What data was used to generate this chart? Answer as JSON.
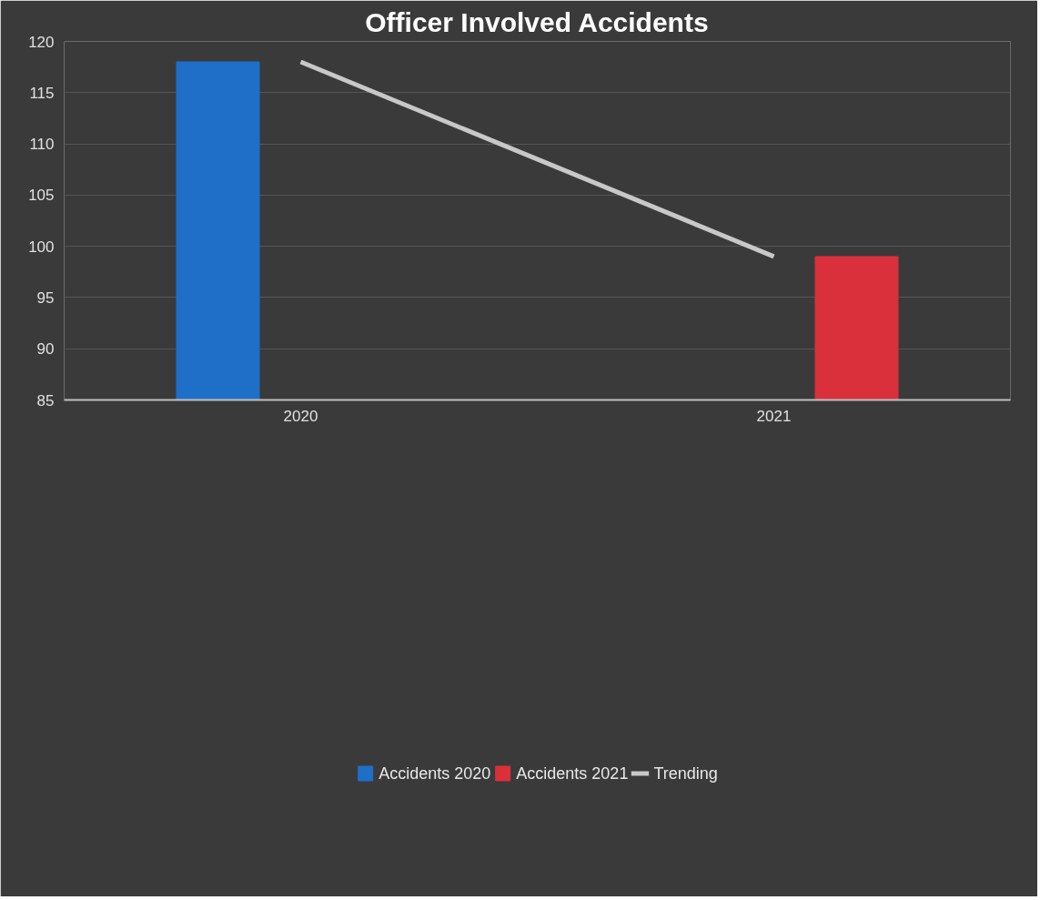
{
  "chart_data": {
    "type": "bar",
    "title": "Officer Involved Accidents",
    "categories": [
      "2020",
      "2021"
    ],
    "series": [
      {
        "name": "Accidents 2020",
        "color": "#1f6fc8",
        "values": [
          118,
          null
        ]
      },
      {
        "name": "Accidents 2021",
        "color": "#d9303c",
        "values": [
          null,
          99
        ]
      },
      {
        "name": "Trending",
        "type": "line",
        "color": "#c8c8c8",
        "values": [
          118,
          99
        ]
      }
    ],
    "ylim": [
      85,
      120
    ],
    "yticks": [
      85,
      90,
      95,
      100,
      105,
      110,
      115,
      120
    ],
    "grid": "y",
    "legend": "bottom"
  }
}
